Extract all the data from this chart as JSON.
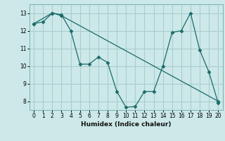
{
  "xlabel": "Humidex (Indice chaleur)",
  "background_color": "#cce8e8",
  "grid_color": "#aacece",
  "line_color": "#1a6b6b",
  "xlim": [
    -0.5,
    20.5
  ],
  "ylim": [
    7.5,
    13.5
  ],
  "yticks": [
    8,
    9,
    10,
    11,
    12,
    13
  ],
  "xticks": [
    0,
    1,
    2,
    3,
    4,
    5,
    6,
    7,
    8,
    9,
    10,
    11,
    12,
    13,
    14,
    15,
    16,
    17,
    18,
    19,
    20
  ],
  "line1_x": [
    0,
    1,
    2,
    3,
    4,
    5,
    6,
    7,
    8,
    9,
    10,
    11,
    12,
    13,
    14,
    15,
    16,
    17,
    18,
    19,
    20
  ],
  "line1_y": [
    12.4,
    12.5,
    13.0,
    12.9,
    12.0,
    10.1,
    10.1,
    10.5,
    10.2,
    8.55,
    7.65,
    7.7,
    8.55,
    8.55,
    10.0,
    11.9,
    12.0,
    13.0,
    10.9,
    9.65,
    7.9
  ],
  "line2_x": [
    0,
    2,
    3
  ],
  "line2_y": [
    12.4,
    13.0,
    12.85
  ],
  "line3_x": [
    3,
    20
  ],
  "line3_y": [
    12.85,
    8.0
  ]
}
